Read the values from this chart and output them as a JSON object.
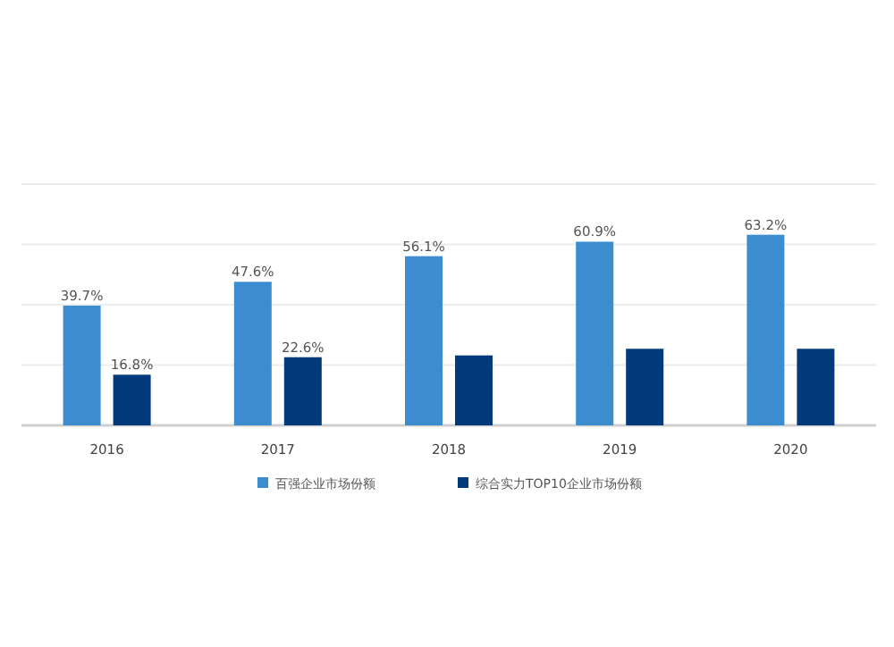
{
  "chart_data": {
    "type": "bar",
    "categories": [
      "2016",
      "2017",
      "2018",
      "2019",
      "2020"
    ],
    "series": [
      {
        "name": "百强企业市场份额",
        "color": "#3c8dd0",
        "values": [
          39.7,
          47.6,
          56.1,
          60.9,
          63.2
        ],
        "value_labels": [
          "39.7%",
          "47.6%",
          "56.1%",
          "60.9%",
          "63.2%"
        ]
      },
      {
        "name": "综合实力TOP10企业市场份额",
        "color": "#023a7c",
        "values": [
          16.8,
          22.6,
          23.2,
          25.4,
          25.4
        ],
        "value_labels": [
          "16.8%",
          "22.6%",
          null,
          null,
          null
        ]
      }
    ],
    "ylim": [
      0,
      80
    ],
    "yticks": [
      {
        "value": 0,
        "label": null
      },
      {
        "value": 20,
        "label": null
      },
      {
        "value": 40,
        "label": null
      },
      {
        "value": 60,
        "label": null
      },
      {
        "value": 80,
        "label": null
      }
    ],
    "grid": "y",
    "legend": "bottom"
  }
}
